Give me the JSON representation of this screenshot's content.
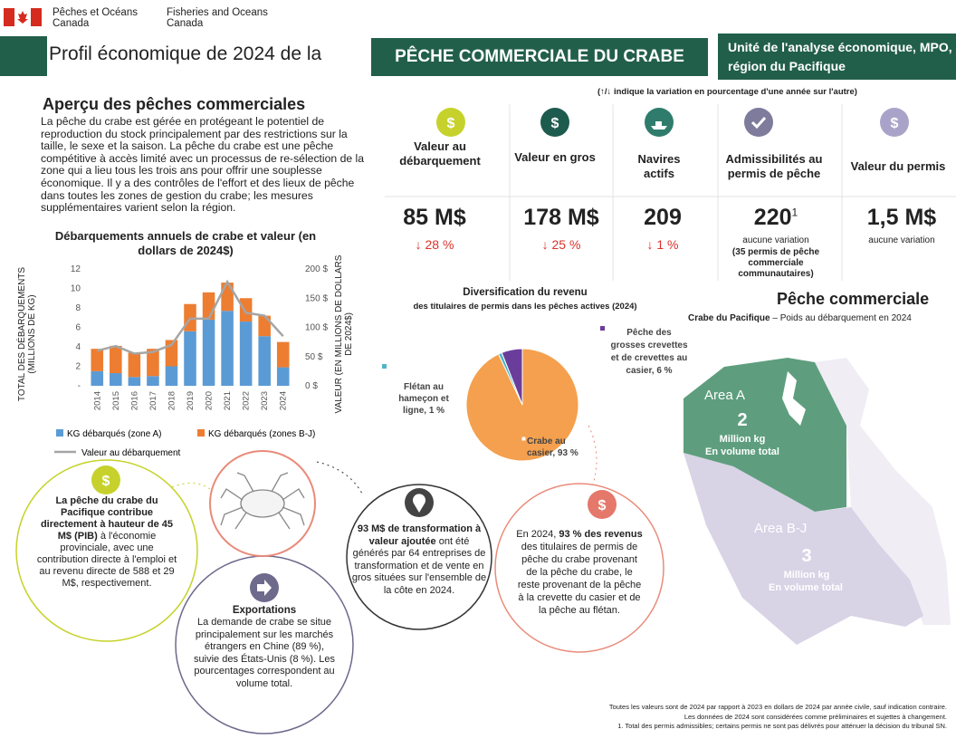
{
  "header": {
    "dept_fr": "Pêches et Océans",
    "country_fr": "Canada",
    "dept_en": "Fisheries and Oceans",
    "country_en": "Canada",
    "title_prefix": "Profil économique de 2024 de la",
    "title_main": "PÊCHE COMMERCIALE DU CRABE",
    "unit": "Unité de l'analyse économique, MPO, région du Pacifique"
  },
  "overview": {
    "heading": "Aperçu des pêches commerciales",
    "text": "La pêche du crabe est gérée en protégeant le potentiel de reproduction du stock principalement par des restrictions sur la taille, le sexe et la saison. La pêche du crabe est une pêche compétitive à accès limité avec un processus de re-sélection de la zone qui a lieu tous les trois ans pour offrir une souplesse économique. Il y a des contrôles de l'effort et des lieux de pêche dans toutes les zones de gestion du crabe; les mesures supplémentaires varient selon la région."
  },
  "kpi_note": "(↑/↓ indique la variation en pourcentage d'une année sur l'autre)",
  "kpis": [
    {
      "label": "Valeur au débarquement",
      "value": "85 M$",
      "change": "↓ 28 %"
    },
    {
      "label": "Valeur en gros",
      "value": "178 M$",
      "change": "↓ 25 %"
    },
    {
      "label": "Navires actifs",
      "value": "209",
      "change": "↓ 1 %"
    },
    {
      "label": "Admissibilités au permis de pêche",
      "value": "220",
      "sup": "1",
      "change": "aucune variation",
      "note": "(35 permis de pêche commerciale communautaires)"
    },
    {
      "label": "Valeur du permis",
      "value": "1,5 M$",
      "change": "aucune variation"
    }
  ],
  "landings_chart": {
    "type": "bar",
    "title": "Débarquements annuels de crabe et valeur (en dollars de 2024$)",
    "categories": [
      "2014",
      "2015",
      "2016",
      "2017",
      "2018",
      "2019",
      "2020",
      "2021",
      "2022",
      "2023",
      "2024"
    ],
    "series": [
      {
        "name": "KG débarqués (zone A)",
        "color": "#5b9bd5",
        "values": [
          1.5,
          1.3,
          0.9,
          1.0,
          2.0,
          5.6,
          6.8,
          7.7,
          6.6,
          5.1,
          1.9
        ]
      },
      {
        "name": "KG débarqués (zones B-J)",
        "color": "#ed7d31",
        "values": [
          2.3,
          2.8,
          2.5,
          2.8,
          2.7,
          2.8,
          2.8,
          2.9,
          2.4,
          2.1,
          2.6
        ]
      },
      {
        "name": "Valeur au débarquement",
        "color": "#a5a5a5",
        "type": "line",
        "axis": "y2",
        "values": [
          60,
          68,
          55,
          58,
          70,
          115,
          115,
          178,
          125,
          120,
          85
        ]
      }
    ],
    "ylabel": "TOTAL DES DÉBARQUEMENTS (MILLIONS DE KG)",
    "y2label": "VALEUR (EN MILLIONS DE DOLLARS DE 2024$)",
    "ylim": [
      0,
      12
    ],
    "yticks": [
      {
        "value": 0,
        "label": "-"
      },
      2,
      4,
      6,
      8,
      10,
      12
    ],
    "y2lim": [
      0,
      200
    ],
    "y2ticks": [
      {
        "value": 0,
        "label": "0 $"
      },
      {
        "value": 50,
        "label": "50 $"
      },
      {
        "value": 100,
        "label": "100 $"
      },
      {
        "value": 150,
        "label": "150 $"
      },
      {
        "value": 200,
        "label": "200 $"
      }
    ]
  },
  "revenue_pie": {
    "type": "pie",
    "title": "Diversification du revenu",
    "subtitle": "des titulaires de permis dans les pêches actives (2024)",
    "labels": [
      "Crabe au casier, 93 %",
      "Flétan au hameçon et ligne, 1 %",
      "Pêche des grosses crevettes et de crevettes au casier, 6 %"
    ],
    "values": [
      93,
      1,
      6
    ],
    "colors": [
      "#f4a04e",
      "#4fb6c6",
      "#6a3d9a"
    ]
  },
  "gdp": {
    "bold": "La pêche du crabe du Pacifique contribue directement à hauteur de 45 M$ (PIB)",
    "text": "à l'économie provinciale, avec une contribution directe à l'emploi et au revenu directe de 588 et 29 M$, respectivement."
  },
  "exports": {
    "title": "Exportations",
    "text": "La demande de crabe se situe principalement sur les marchés étrangers en Chine (89 %), suivie des États-Unis (8 %). Les pourcentages correspondent au volume total."
  },
  "processing": {
    "bold": "93 M$ de transformation à valeur ajoutée",
    "text": "ont été générés par 64 entreprises de transformation et de vente en gros situées sur l'ensemble de la côte en 2024."
  },
  "revenue": {
    "lead": "En 2024,",
    "bold": "93 % des revenus",
    "text": "des titulaires de permis de pêche du crabe provenant de la pêche du crabe, le reste provenant de la pêche à la crevette du casier et de la pêche au flétan."
  },
  "map": {
    "heading": "Pêche commerciale",
    "subtitle_bold": "Crabe du Pacifique",
    "subtitle": "– Poids au débarquement en 2024",
    "areas": [
      {
        "name": "Area A",
        "value": "2",
        "unit": "Million kg",
        "note": "En volume total"
      },
      {
        "name": "Area B-J",
        "value": "3",
        "unit": "Million kg",
        "note": "En volume total"
      }
    ]
  },
  "footnotes": [
    "Toutes les valeurs sont de 2024 par rapport à 2023 en dollars de 2024 par année civile, sauf indication contraire.",
    "Les données de 2024 sont considérées comme préliminaires et sujettes à changement.",
    "1. Total des permis admissibles; certains permis ne sont pas délivrés pour atténuer la décision du tribunal SN."
  ]
}
